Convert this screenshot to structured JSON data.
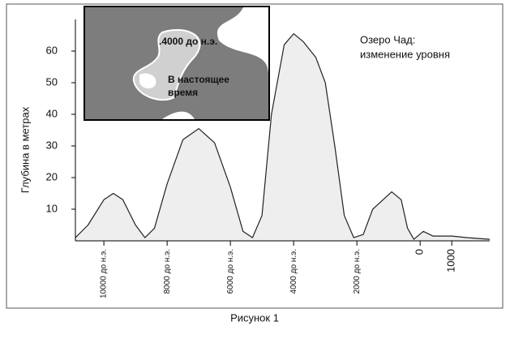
{
  "chart_data": {
    "type": "area",
    "title": [
      "Озеро Чад:",
      "изменение уровня"
    ],
    "ylabel": "Глубина в метрах",
    "caption": "Рисунок 1",
    "inset_labels": [
      ".4000 до н.э.",
      "В настоящее",
      "время"
    ],
    "x": [
      -10900,
      -10500,
      -10000,
      -9700,
      -9400,
      -9000,
      -8700,
      -8400,
      -8000,
      -7500,
      -7000,
      -6500,
      -6000,
      -5600,
      -5300,
      -5000,
      -4700,
      -4300,
      -4000,
      -3700,
      -3300,
      -3000,
      -2700,
      -2400,
      -2100,
      -1800,
      -1500,
      -900,
      -600,
      -400,
      -200,
      100,
      400,
      1000,
      1500,
      2200
    ],
    "values": [
      1,
      5,
      13,
      15,
      13,
      5,
      1,
      4,
      18,
      32,
      35.5,
      31,
      17,
      3,
      1,
      8,
      40,
      62,
      65.5,
      63,
      58,
      50,
      30,
      8,
      1,
      2,
      10,
      15.5,
      13,
      4,
      0.5,
      3,
      1.5,
      1.5,
      1,
      0.5
    ],
    "color": "#eeeeee",
    "xlim": [
      -10900,
      2200
    ],
    "ylim": [
      0,
      70
    ],
    "xticks": [
      {
        "value": -10000,
        "label": "10000 до н.э."
      },
      {
        "value": -8000,
        "label": "8000 до н.э."
      },
      {
        "value": -6000,
        "label": "6000 до н.э."
      },
      {
        "value": -4000,
        "label": "4000 до н.э."
      },
      {
        "value": -2000,
        "label": "2000 до н.э."
      },
      0,
      1000
    ],
    "yticks": [
      10,
      20,
      30,
      40,
      50,
      60
    ]
  }
}
